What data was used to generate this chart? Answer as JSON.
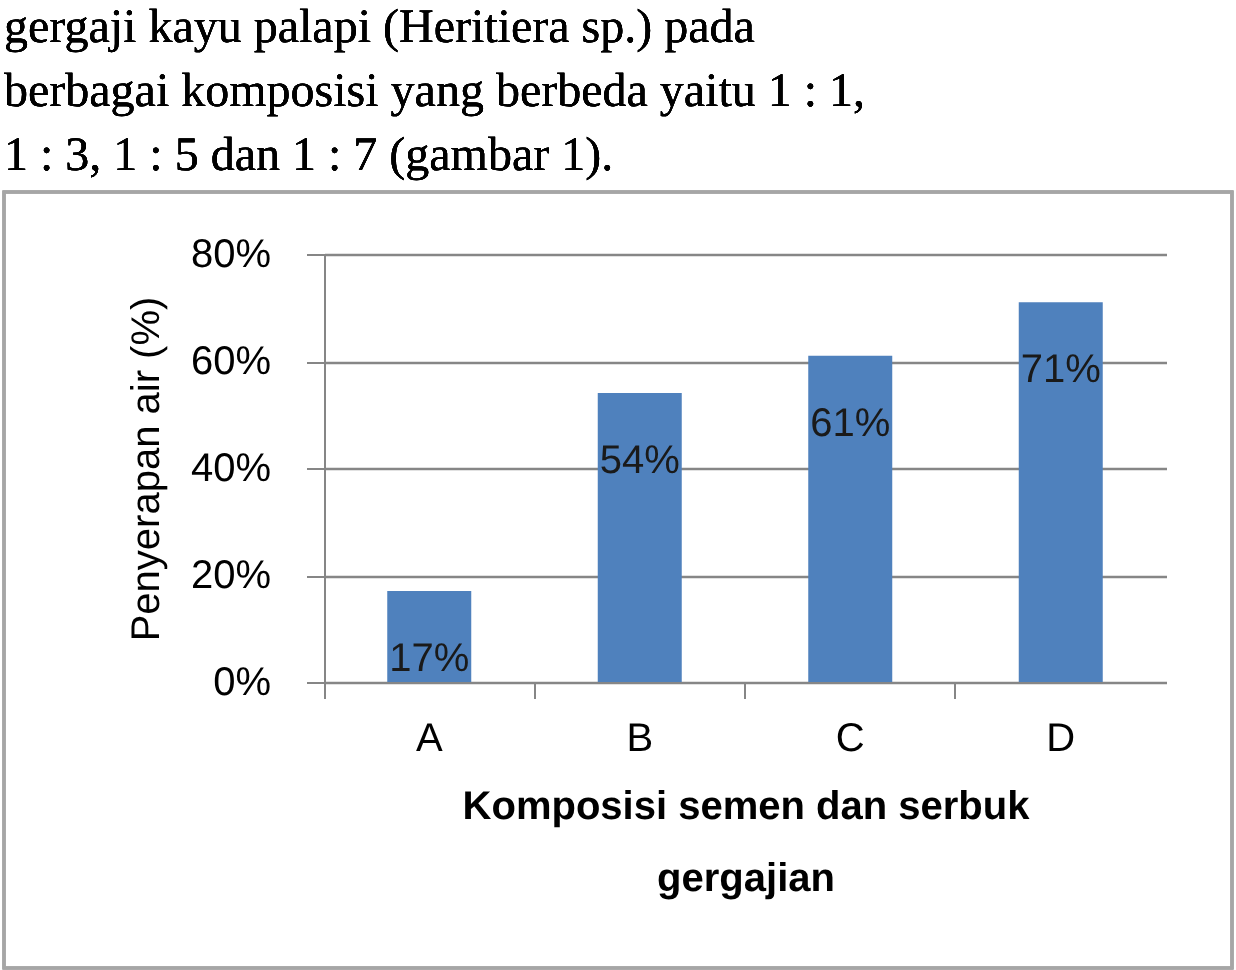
{
  "chart_data": {
    "type": "bar",
    "annotations": [
      "gergaji kayu palapi (Heritiera sp.) pada",
      "berbagai komposisi yang berbeda yaitu 1 : 1,",
      "1 : 3, 1 : 5 dan 1 : 7 (gambar 1)."
    ],
    "xlabel": "Komposisi semen dan serbuk gergajian",
    "ylabel": "Penyerapan air (%)",
    "categories": [
      "A",
      "B",
      "C",
      "D"
    ],
    "values": [
      17,
      54,
      61,
      71
    ],
    "color": "#4f81bd",
    "value_labels": [
      "17%",
      "54%",
      "61%",
      "71%"
    ],
    "ylim": [
      0,
      80
    ],
    "yticks": [
      {
        "value": 0,
        "label": "0%"
      },
      {
        "value": 20,
        "label": "20%"
      },
      {
        "value": 40,
        "label": "40%"
      },
      {
        "value": 60,
        "label": "60%"
      },
      {
        "value": 80,
        "label": "80%"
      }
    ],
    "grid": "y"
  }
}
